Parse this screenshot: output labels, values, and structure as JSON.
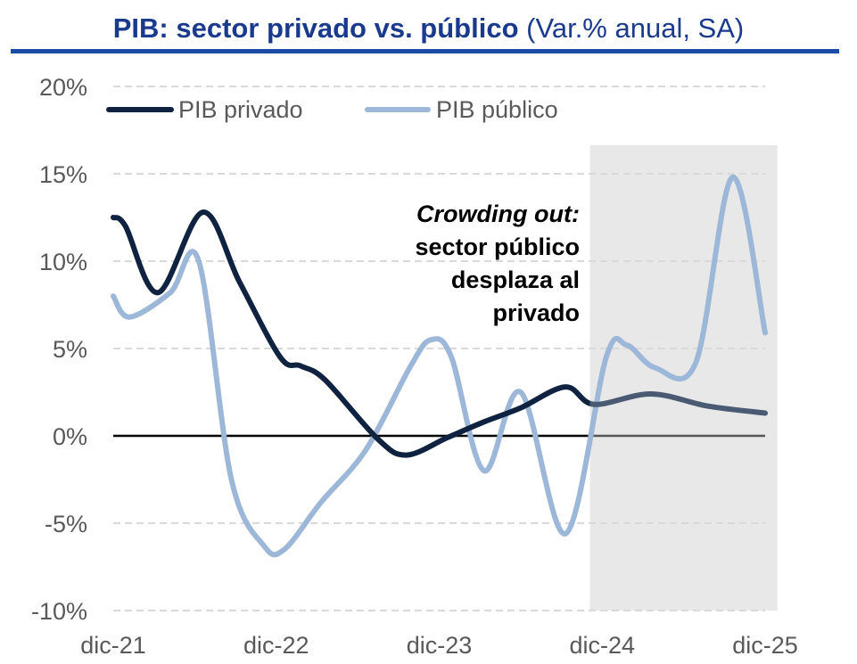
{
  "title": {
    "bold": "PIB: sector privado vs. público",
    "normal": "(Var.% anual, SA)"
  },
  "colors": {
    "title": "#1a3a8e",
    "rule": "#1a4ca8",
    "private": "#0f2340",
    "private_projection": "#4a5a72",
    "public": "#9db7d8",
    "shade": "#e8e8e8",
    "grid": "#d9d9d9"
  },
  "annotation": {
    "line1": "Crowding out:",
    "line2": "sector público",
    "line3": "desplaza al",
    "line4": "privado"
  },
  "chart_data": {
    "type": "line",
    "title": "PIB: sector privado vs. público (Var.% anual, SA)",
    "ylim": [
      -10,
      20
    ],
    "yticks": [
      -10,
      -5,
      0,
      5,
      10,
      15,
      20
    ],
    "ytick_labels": [
      "-10%",
      "-5%",
      "0%",
      "5%",
      "10%",
      "15%",
      "20%"
    ],
    "xlim": [
      0,
      16
    ],
    "xticks": [
      0,
      4,
      8,
      12,
      16
    ],
    "xtick_labels": [
      "dic-21",
      "dic-22",
      "dic-23",
      "dic-24",
      "dic-25"
    ],
    "grid": true,
    "legend_position": "top-left",
    "shaded_region": [
      11.7,
      16.3
    ],
    "projection_start": 12,
    "series": [
      {
        "name": "PIB privado",
        "x": [
          0,
          0.3,
          1.1,
          2.2,
          3.1,
          4.1,
          4.6,
          5.2,
          6.5,
          7.2,
          8.2,
          9.1,
          10,
          11.1,
          11.8,
          13.2,
          14.6,
          16
        ],
        "values": [
          12.5,
          12,
          8.2,
          12.8,
          8.8,
          4.5,
          4,
          3.2,
          -0.2,
          -1.1,
          -0.1,
          0.8,
          1.6,
          2.8,
          1.8,
          2.4,
          1.7,
          1.3
        ]
      },
      {
        "name": "PIB público",
        "x": [
          0,
          0.4,
          1.4,
          2.1,
          2.9,
          3.7,
          4.2,
          5.1,
          6.2,
          7.3,
          7.8,
          8.3,
          9.1,
          10,
          11.1,
          12.1,
          12.6,
          13.3,
          14.3,
          15.2,
          16
        ],
        "values": [
          8,
          6.8,
          8.2,
          10,
          -2.5,
          -6.3,
          -6.5,
          -3.8,
          -0.8,
          4,
          5.5,
          4.5,
          -2,
          2.5,
          -5.6,
          4.5,
          5.2,
          3.9,
          4.2,
          14.8,
          5.9
        ]
      }
    ]
  }
}
